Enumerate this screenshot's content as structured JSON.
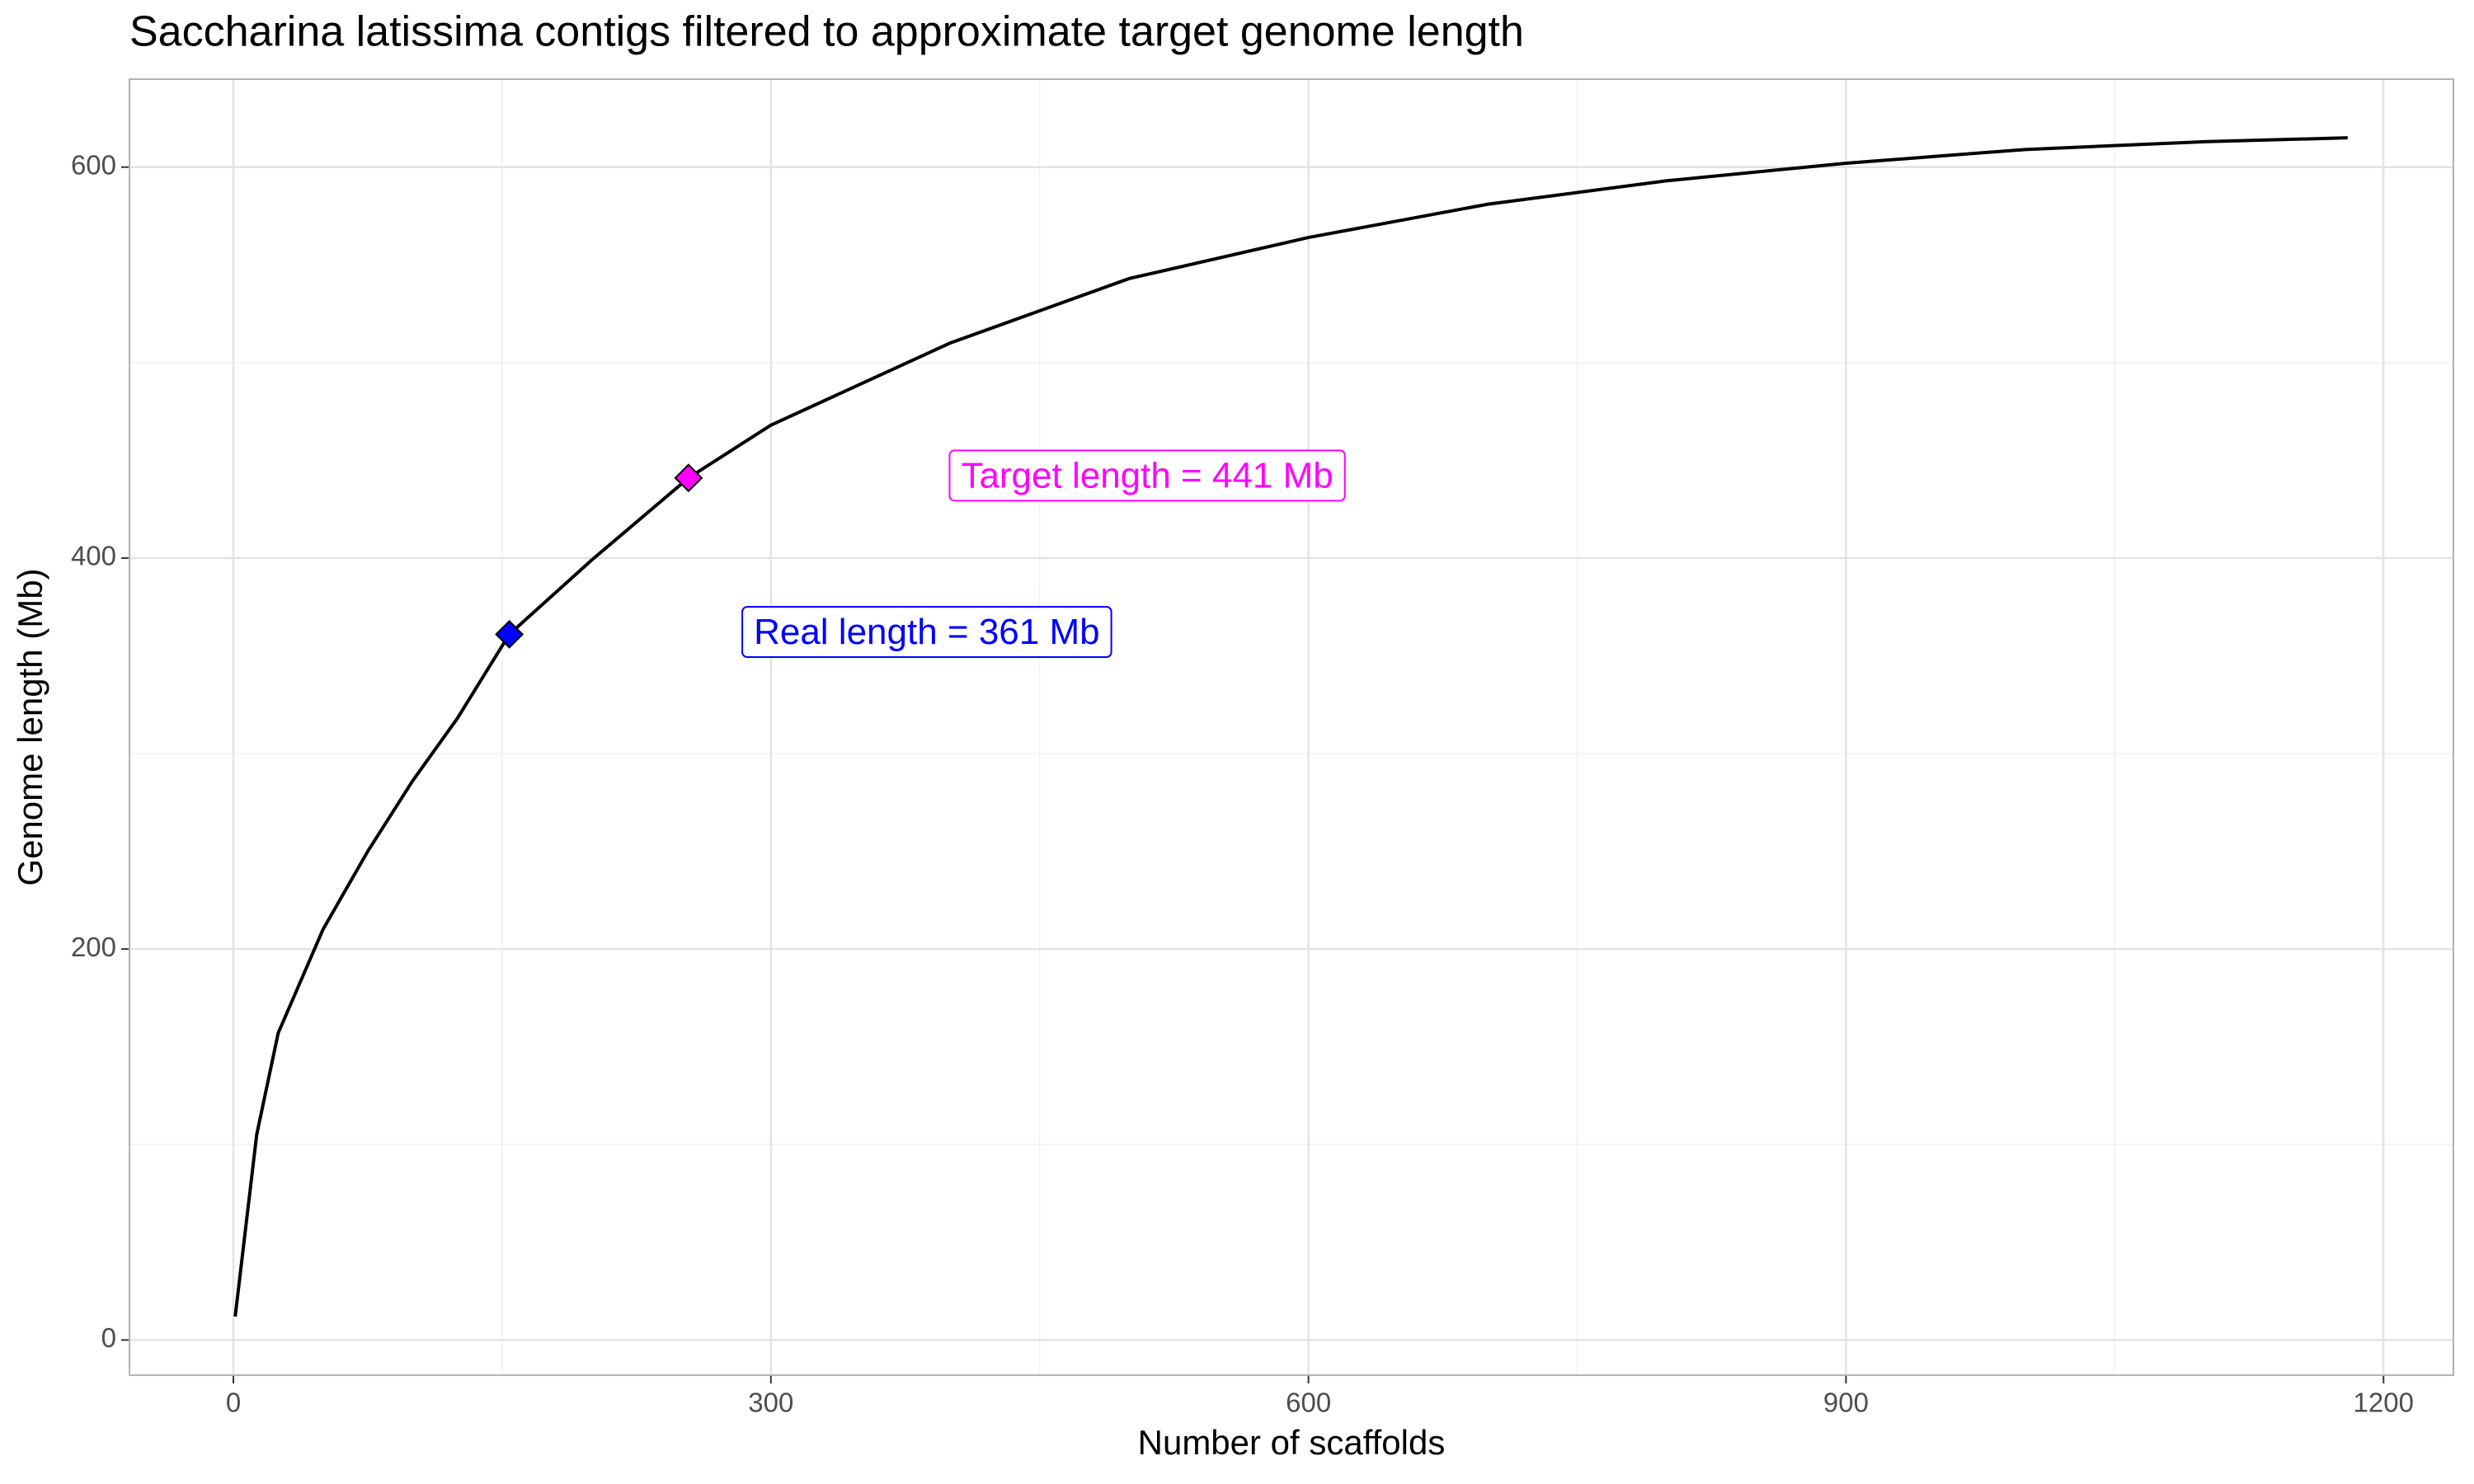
{
  "chart_data": {
    "type": "line",
    "title": "Saccharina latissima contigs filtered to approximate target genome length",
    "x_label": "Number of scaffolds",
    "y_label": "Genome length (Mb)",
    "x": [
      1,
      13,
      25,
      50,
      75,
      100,
      125,
      154,
      200,
      254,
      300,
      400,
      500,
      600,
      700,
      800,
      900,
      1000,
      1100,
      1180
    ],
    "series": [
      {
        "color": "#000000",
        "values": [
          12,
          105,
          157,
          210,
          250,
          286,
          318,
          361,
          399,
          441,
          468,
          510,
          543,
          564,
          581,
          593,
          602,
          609,
          613,
          615
        ]
      }
    ],
    "points": [
      {
        "x": 154,
        "y": 361,
        "color": "#0000ff"
      },
      {
        "x": 254,
        "y": 441,
        "color": "#ff00ff"
      }
    ],
    "annotations": [
      {
        "text": "Real length = 361 Mb",
        "x": 387,
        "y": 361,
        "color": "#0000ff"
      },
      {
        "text": "Target length = 441 Mb",
        "x": 510,
        "y": 441,
        "color": "#ff00ff"
      }
    ],
    "xlim": [
      -58,
      1239
    ],
    "ylim": [
      -18,
      645
    ],
    "xticks": [
      0,
      300,
      600,
      900,
      1200
    ],
    "yticks": [
      0,
      200,
      400,
      600
    ],
    "x_minor_grid": [
      150,
      450,
      750,
      1050
    ],
    "y_minor_grid": [
      100,
      300,
      500
    ],
    "grid": true
  }
}
